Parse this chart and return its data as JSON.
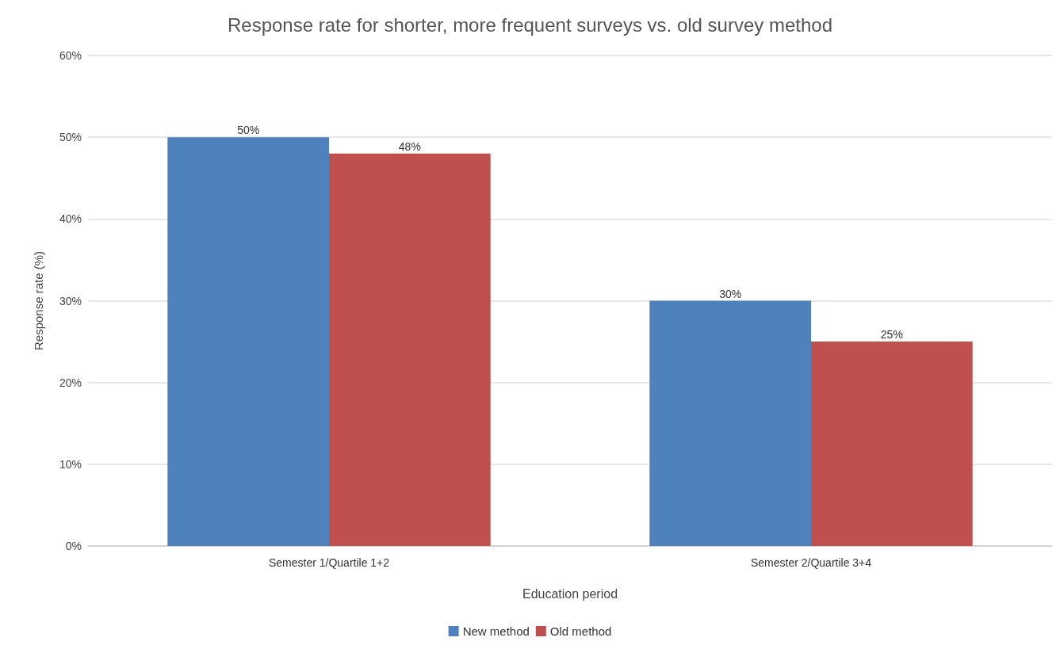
{
  "chart_data": {
    "type": "bar",
    "title": "Response rate for shorter, more frequent surveys vs. old survey method",
    "xlabel": "Education period",
    "ylabel": "Response rate (%)",
    "categories": [
      "Semester 1/Quartile 1+2",
      "Semester 2/Quartile 3+4"
    ],
    "series": [
      {
        "name": "New method",
        "color": "#4f81bd",
        "values": [
          50,
          30
        ],
        "value_labels": [
          "50%",
          "30%"
        ]
      },
      {
        "name": "Old method",
        "color": "#c0504d",
        "values": [
          48,
          25
        ],
        "value_labels": [
          "48%",
          "25%"
        ]
      }
    ],
    "ylim": [
      0,
      60
    ],
    "yticks": [
      {
        "value": 0,
        "label": "0%"
      },
      {
        "value": 10,
        "label": "10%"
      },
      {
        "value": 20,
        "label": "20%"
      },
      {
        "value": 30,
        "label": "30%"
      },
      {
        "value": 40,
        "label": "40%"
      },
      {
        "value": 50,
        "label": "50%"
      },
      {
        "value": 60,
        "label": "60%"
      }
    ],
    "grid": "y",
    "legend": "bottom"
  }
}
